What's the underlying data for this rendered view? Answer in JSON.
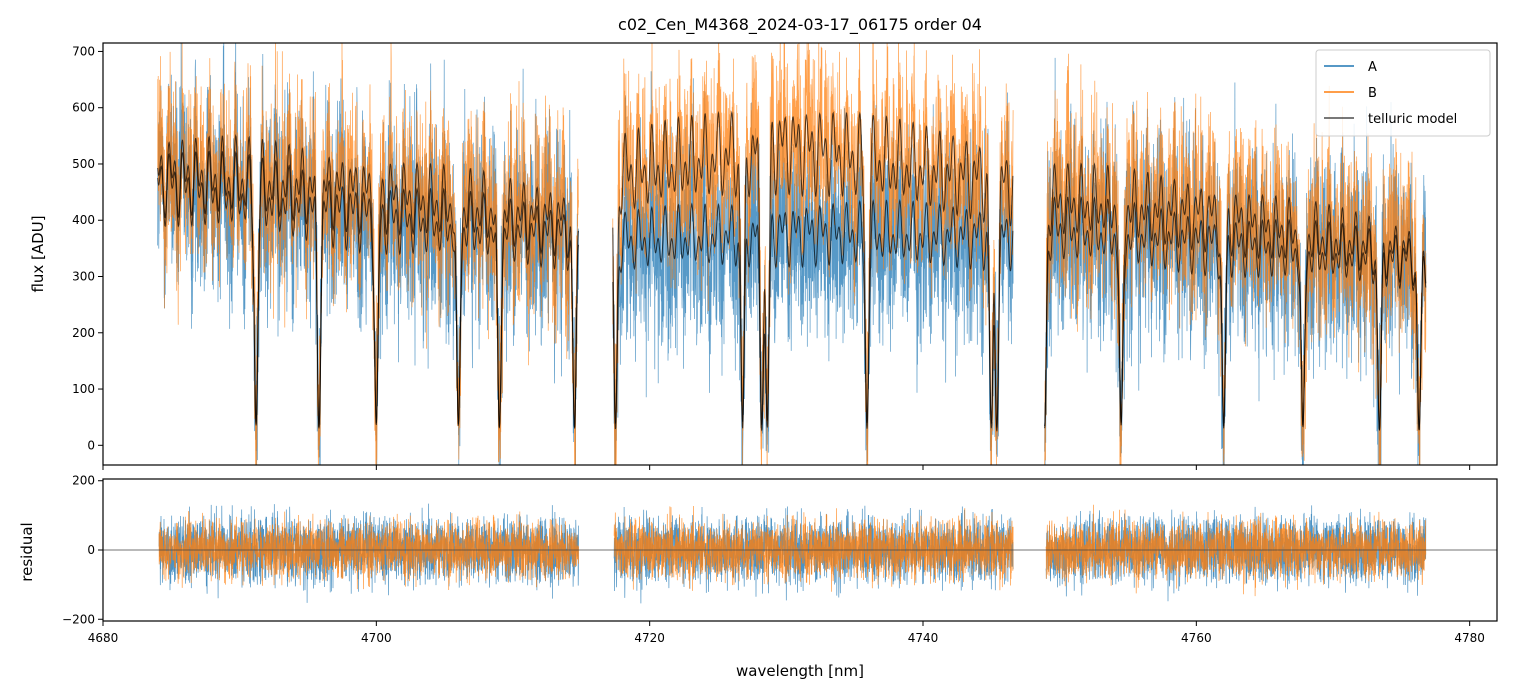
{
  "chart_data": [
    {
      "type": "line",
      "title": "c02_Cen_M4368_2024-03-17_06175  order 04",
      "xlabel": "",
      "ylabel": "flux [ADU]",
      "xlim": [
        4680,
        4782
      ],
      "ylim": [
        -35,
        715
      ],
      "x_ticks": [
        4680,
        4700,
        4720,
        4740,
        4760,
        4780
      ],
      "y_ticks": [
        0,
        100,
        200,
        300,
        400,
        500,
        600,
        700
      ],
      "y_tick_labels": [
        "0",
        "100",
        "200",
        "300",
        "400",
        "500",
        "600",
        "700"
      ],
      "legend_position": "top-right",
      "segments": [
        [
          4684.0,
          4714.8
        ],
        [
          4717.3,
          4746.6
        ],
        [
          4748.9,
          4776.8
        ]
      ],
      "series": [
        {
          "name": "A",
          "color": "#1f77b4",
          "level": [
            [
              4684,
              540
            ],
            [
              4690,
              520
            ],
            [
              4700,
              470
            ],
            [
              4714.8,
              430
            ],
            [
              4717.3,
              420
            ],
            [
              4730,
              440
            ],
            [
              4746.6,
              430
            ],
            [
              4748.9,
              450
            ],
            [
              4760,
              420
            ],
            [
              4776.8,
              380
            ]
          ]
        },
        {
          "name": "B",
          "color": "#ff7f0e",
          "level": [
            [
              4684,
              560
            ],
            [
              4690,
              550
            ],
            [
              4700,
              520
            ],
            [
              4714.8,
              460
            ],
            [
              4717.3,
              560
            ],
            [
              4730,
              620
            ],
            [
              4746.6,
              540
            ],
            [
              4748.9,
              510
            ],
            [
              4760,
              480
            ],
            [
              4776.8,
              390
            ]
          ]
        },
        {
          "name": "telluric model",
          "color": "#000000"
        }
      ],
      "absorption_lines": [
        4691.2,
        4695.8,
        4700.0,
        4706.0,
        4709.0,
        4714.5,
        4717.5,
        4726.8,
        4728.2,
        4728.6,
        4735.9,
        4745.0,
        4745.4,
        4748.9,
        4754.5,
        4762.0,
        4767.8,
        4773.4,
        4776.3
      ]
    },
    {
      "type": "line",
      "title": "",
      "xlabel": "wavelength [nm]",
      "ylabel": "residual",
      "xlim": [
        4680,
        4782
      ],
      "ylim": [
        -205,
        205
      ],
      "x_ticks": [
        4680,
        4700,
        4720,
        4740,
        4760,
        4780
      ],
      "x_tick_labels": [
        "4680",
        "4700",
        "4720",
        "4740",
        "4760",
        "4780"
      ],
      "y_ticks": [
        -200,
        0,
        200
      ],
      "y_tick_labels": [
        "−200",
        "0",
        "200"
      ],
      "zero_line": true,
      "series": [
        {
          "name": "A",
          "color": "#1f77b4",
          "scatter": 80
        },
        {
          "name": "B",
          "color": "#ff7f0e",
          "scatter": 70
        }
      ]
    }
  ]
}
